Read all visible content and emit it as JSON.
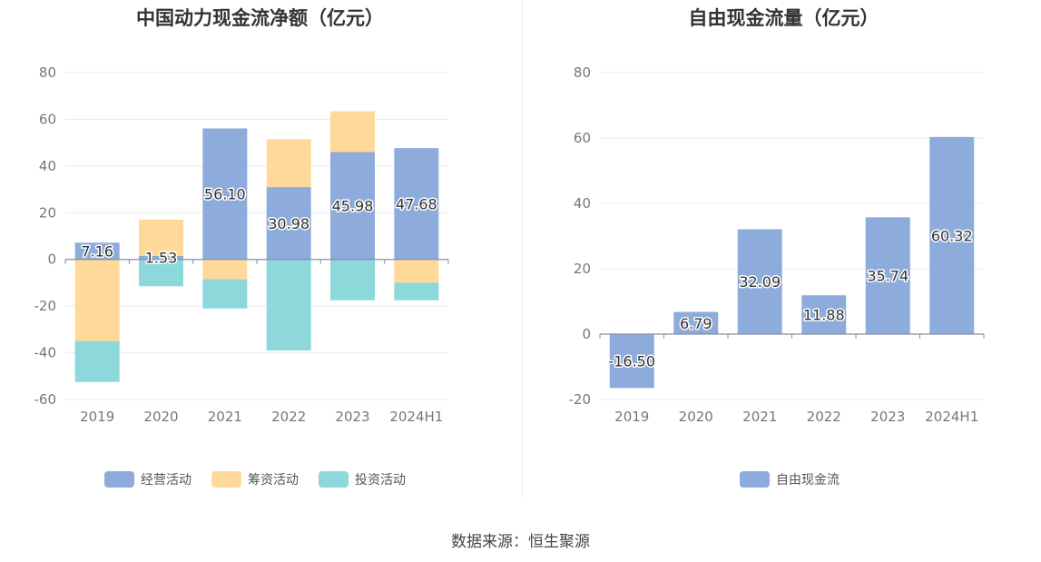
{
  "charts": [
    {
      "title": "中国动力现金流净额（亿元）",
      "chart_data": {
        "type": "bar",
        "stacked": true,
        "categories": [
          "2019",
          "2020",
          "2021",
          "2022",
          "2023",
          "2024H1"
        ],
        "series": [
          {
            "name": "经营活动",
            "color": "#8eacdb",
            "values": [
              7.16,
              1.53,
              56.1,
              30.98,
              45.98,
              47.68
            ],
            "labels": [
              "7.16",
              "1.53",
              "56.10",
              "30.98",
              "45.98",
              "47.68"
            ]
          },
          {
            "name": "筹资活动",
            "color": "#ffd99a",
            "values": [
              -35,
              15.5,
              -8.5,
              20.5,
              17.5,
              -10
            ],
            "labels": []
          },
          {
            "name": "投资活动",
            "color": "#8cd8da",
            "values": [
              -17.5,
              -11.5,
              -12.5,
              -39,
              -17.5,
              -7.5
            ],
            "labels": []
          }
        ],
        "ylim": [
          -60,
          80
        ],
        "yticks": [
          80,
          60,
          40,
          20,
          0,
          -20,
          -40,
          -60
        ],
        "grid": true,
        "legend": "bottom"
      }
    },
    {
      "title": "自由现金流量（亿元）",
      "chart_data": {
        "type": "bar",
        "categories": [
          "2019",
          "2020",
          "2021",
          "2022",
          "2023",
          "2024H1"
        ],
        "series": [
          {
            "name": "自由现金流",
            "color": "#8eacdb",
            "values": [
              -16.5,
              6.79,
              32.09,
              11.88,
              35.74,
              60.32
            ],
            "labels": [
              "-16.50",
              "6.79",
              "32.09",
              "11.88",
              "35.74",
              "60.32"
            ]
          }
        ],
        "ylim": [
          -20,
          80
        ],
        "yticks": [
          80,
          60,
          40,
          20,
          0,
          -20
        ],
        "grid": true,
        "legend": "bottom"
      }
    }
  ],
  "footer": {
    "source": "数据来源：恒生聚源"
  }
}
